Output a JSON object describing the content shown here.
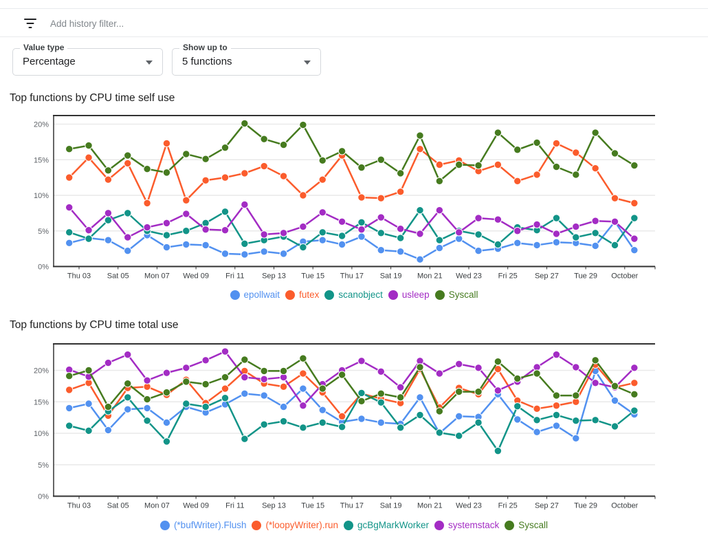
{
  "filter_bar": {
    "placeholder": "Add history filter..."
  },
  "controls": {
    "value_type": {
      "label": "Value type",
      "value": "Percentage"
    },
    "show_up_to": {
      "label": "Show up to",
      "value": "5 functions"
    }
  },
  "palette": {
    "blue": "#5291f0",
    "orange": "#fb5c2c",
    "teal": "#129488",
    "purple": "#a32cc4",
    "green": "#467b1f",
    "grid": "#e9e9e9",
    "axis": "#323232",
    "y_tick_label": "#5f6368",
    "x_tick_label": "#3c4043"
  },
  "chart_data": [
    {
      "type": "line",
      "title": "Top functions by CPU time self use",
      "x": [
        "Sep 02",
        "Sep 03",
        "Sep 04",
        "Sep 05",
        "Sep 06",
        "Sep 07",
        "Sep 08",
        "Sep 09",
        "Sep 10",
        "Sep 11",
        "Sep 12",
        "Sep 13",
        "Sep 14",
        "Sep 15",
        "Sep 16",
        "Sep 17",
        "Sep 18",
        "Sep 19",
        "Sep 20",
        "Sep 21",
        "Sep 22",
        "Sep 23",
        "Sep 24",
        "Sep 25",
        "Sep 26",
        "Sep 27",
        "Sep 28",
        "Sep 29",
        "Sep 30",
        "Oct 01"
      ],
      "tick_labels": [
        "Thu 03",
        "Sat 05",
        "Mon 07",
        "Wed 09",
        "Fri 11",
        "Sep 13",
        "Tue 15",
        "Thu 17",
        "Sat 19",
        "Mon 21",
        "Wed 23",
        "Fri 25",
        "Sep 27",
        "Tue 29",
        "October"
      ],
      "yticks": [
        {
          "v": 0,
          "label": "0%"
        },
        {
          "v": 5,
          "label": "5%"
        },
        {
          "v": 10,
          "label": "10%"
        },
        {
          "v": 15,
          "label": "15%"
        },
        {
          "v": 20,
          "label": "20%"
        }
      ],
      "ylim": [
        0,
        21.2
      ],
      "grid": true,
      "legend_position": "bottom",
      "series": [
        {
          "name": "epollwait",
          "color_key": "blue",
          "values": [
            3.3,
            4.0,
            3.7,
            2.2,
            4.4,
            2.7,
            3.1,
            3.0,
            1.8,
            1.7,
            2.1,
            1.8,
            3.5,
            3.7,
            3.1,
            4.2,
            2.3,
            2.1,
            1.0,
            2.6,
            3.9,
            2.2,
            2.5,
            3.3,
            3.0,
            3.4,
            3.3,
            2.9,
            6.3,
            2.3
          ]
        },
        {
          "name": "futex",
          "color_key": "orange",
          "values": [
            12.5,
            15.3,
            12.2,
            14.5,
            8.9,
            17.3,
            9.3,
            12.1,
            12.5,
            13.1,
            14.1,
            12.7,
            10.0,
            12.2,
            15.6,
            9.7,
            9.6,
            10.5,
            16.5,
            14.3,
            14.9,
            13.4,
            14.3,
            12.0,
            12.9,
            17.3,
            16.0,
            13.8,
            9.6,
            8.9
          ]
        },
        {
          "name": "scanobject",
          "color_key": "teal",
          "values": [
            4.8,
            3.9,
            6.5,
            7.5,
            5.0,
            4.4,
            5.0,
            6.1,
            7.7,
            3.2,
            3.7,
            4.2,
            2.7,
            4.8,
            4.3,
            6.2,
            4.7,
            4.0,
            7.9,
            3.7,
            5.0,
            4.5,
            3.1,
            5.5,
            5.1,
            6.8,
            4.1,
            4.7,
            3.0,
            6.8
          ]
        },
        {
          "name": "usleep",
          "color_key": "purple",
          "values": [
            8.3,
            5.1,
            7.5,
            4.1,
            5.5,
            6.1,
            7.4,
            5.2,
            5.1,
            8.7,
            4.5,
            4.7,
            5.6,
            7.6,
            6.3,
            5.2,
            6.9,
            5.3,
            4.6,
            7.9,
            4.8,
            6.8,
            6.6,
            5.0,
            5.9,
            4.6,
            5.6,
            6.4,
            6.3,
            3.9
          ]
        },
        {
          "name": "Syscall",
          "color_key": "green",
          "values": [
            16.5,
            17.0,
            13.5,
            15.6,
            13.7,
            13.2,
            15.8,
            15.1,
            16.7,
            20.1,
            17.9,
            17.1,
            19.9,
            14.9,
            16.2,
            13.9,
            15.0,
            13.1,
            18.4,
            12.0,
            14.3,
            14.2,
            18.8,
            16.4,
            17.4,
            14.0,
            12.9,
            18.8,
            15.9,
            14.2
          ]
        }
      ]
    },
    {
      "type": "line",
      "title": "Top functions by CPU time total use",
      "x": [
        "Sep 02",
        "Sep 03",
        "Sep 04",
        "Sep 05",
        "Sep 06",
        "Sep 07",
        "Sep 08",
        "Sep 09",
        "Sep 10",
        "Sep 11",
        "Sep 12",
        "Sep 13",
        "Sep 14",
        "Sep 15",
        "Sep 16",
        "Sep 17",
        "Sep 18",
        "Sep 19",
        "Sep 20",
        "Sep 21",
        "Sep 22",
        "Sep 23",
        "Sep 24",
        "Sep 25",
        "Sep 26",
        "Sep 27",
        "Sep 28",
        "Sep 29",
        "Sep 30",
        "Oct 01"
      ],
      "tick_labels": [
        "Thu 03",
        "Sat 05",
        "Mon 07",
        "Wed 09",
        "Fri 11",
        "Sep 13",
        "Tue 15",
        "Thu 17",
        "Sat 19",
        "Mon 21",
        "Wed 23",
        "Fri 25",
        "Sep 27",
        "Tue 29",
        "October"
      ],
      "yticks": [
        {
          "v": 0,
          "label": "0%"
        },
        {
          "v": 5,
          "label": "5%"
        },
        {
          "v": 10,
          "label": "10%"
        },
        {
          "v": 15,
          "label": "15%"
        },
        {
          "v": 20,
          "label": "20%"
        }
      ],
      "ylim": [
        0,
        24.2
      ],
      "grid": true,
      "legend_position": "bottom",
      "series": [
        {
          "name": "(*bufWriter).Flush",
          "color_key": "blue",
          "values": [
            14.0,
            14.7,
            10.5,
            13.8,
            14.0,
            11.7,
            14.2,
            13.3,
            14.6,
            16.3,
            16.0,
            14.2,
            17.1,
            13.7,
            11.8,
            12.3,
            11.7,
            11.5,
            15.7,
            10.0,
            12.7,
            12.6,
            16.2,
            12.2,
            10.2,
            11.2,
            9.2,
            19.9,
            15.2,
            13.0
          ]
        },
        {
          "name": "(*loopyWriter).run",
          "color_key": "orange",
          "values": [
            16.9,
            18.0,
            12.8,
            17.2,
            17.4,
            16.1,
            18.5,
            14.8,
            17.1,
            19.9,
            17.9,
            17.4,
            19.5,
            16.5,
            12.7,
            16.3,
            15.5,
            14.8,
            20.2,
            14.1,
            17.2,
            16.2,
            20.2,
            15.2,
            13.9,
            14.4,
            15.0,
            20.9,
            17.3,
            18.0
          ]
        },
        {
          "name": "gcBgMarkWorker",
          "color_key": "teal",
          "values": [
            11.2,
            10.4,
            13.5,
            15.7,
            12.0,
            8.7,
            14.7,
            14.2,
            15.6,
            9.1,
            11.4,
            11.9,
            10.9,
            11.7,
            11.0,
            16.4,
            14.9,
            10.9,
            12.9,
            10.1,
            9.6,
            11.7,
            7.2,
            14.3,
            12.1,
            12.9,
            12.0,
            12.1,
            11.1,
            13.6
          ]
        },
        {
          "name": "systemstack",
          "color_key": "purple",
          "values": [
            20.1,
            19.0,
            21.2,
            22.5,
            18.4,
            19.6,
            20.4,
            21.6,
            23.0,
            18.9,
            18.6,
            18.9,
            14.4,
            17.8,
            20.0,
            21.5,
            19.8,
            17.3,
            21.5,
            19.5,
            21.0,
            20.4,
            16.8,
            18.2,
            20.5,
            22.5,
            20.5,
            18.0,
            17.3,
            20.4
          ]
        },
        {
          "name": "Syscall",
          "color_key": "green",
          "values": [
            19.1,
            20.0,
            14.2,
            17.9,
            15.4,
            16.5,
            18.2,
            17.8,
            18.9,
            21.7,
            19.9,
            19.9,
            21.9,
            17.1,
            19.3,
            15.1,
            16.3,
            15.7,
            20.5,
            13.5,
            16.6,
            16.6,
            21.4,
            18.7,
            19.5,
            16.0,
            16.0,
            21.6,
            17.5,
            16.2
          ]
        }
      ]
    }
  ]
}
